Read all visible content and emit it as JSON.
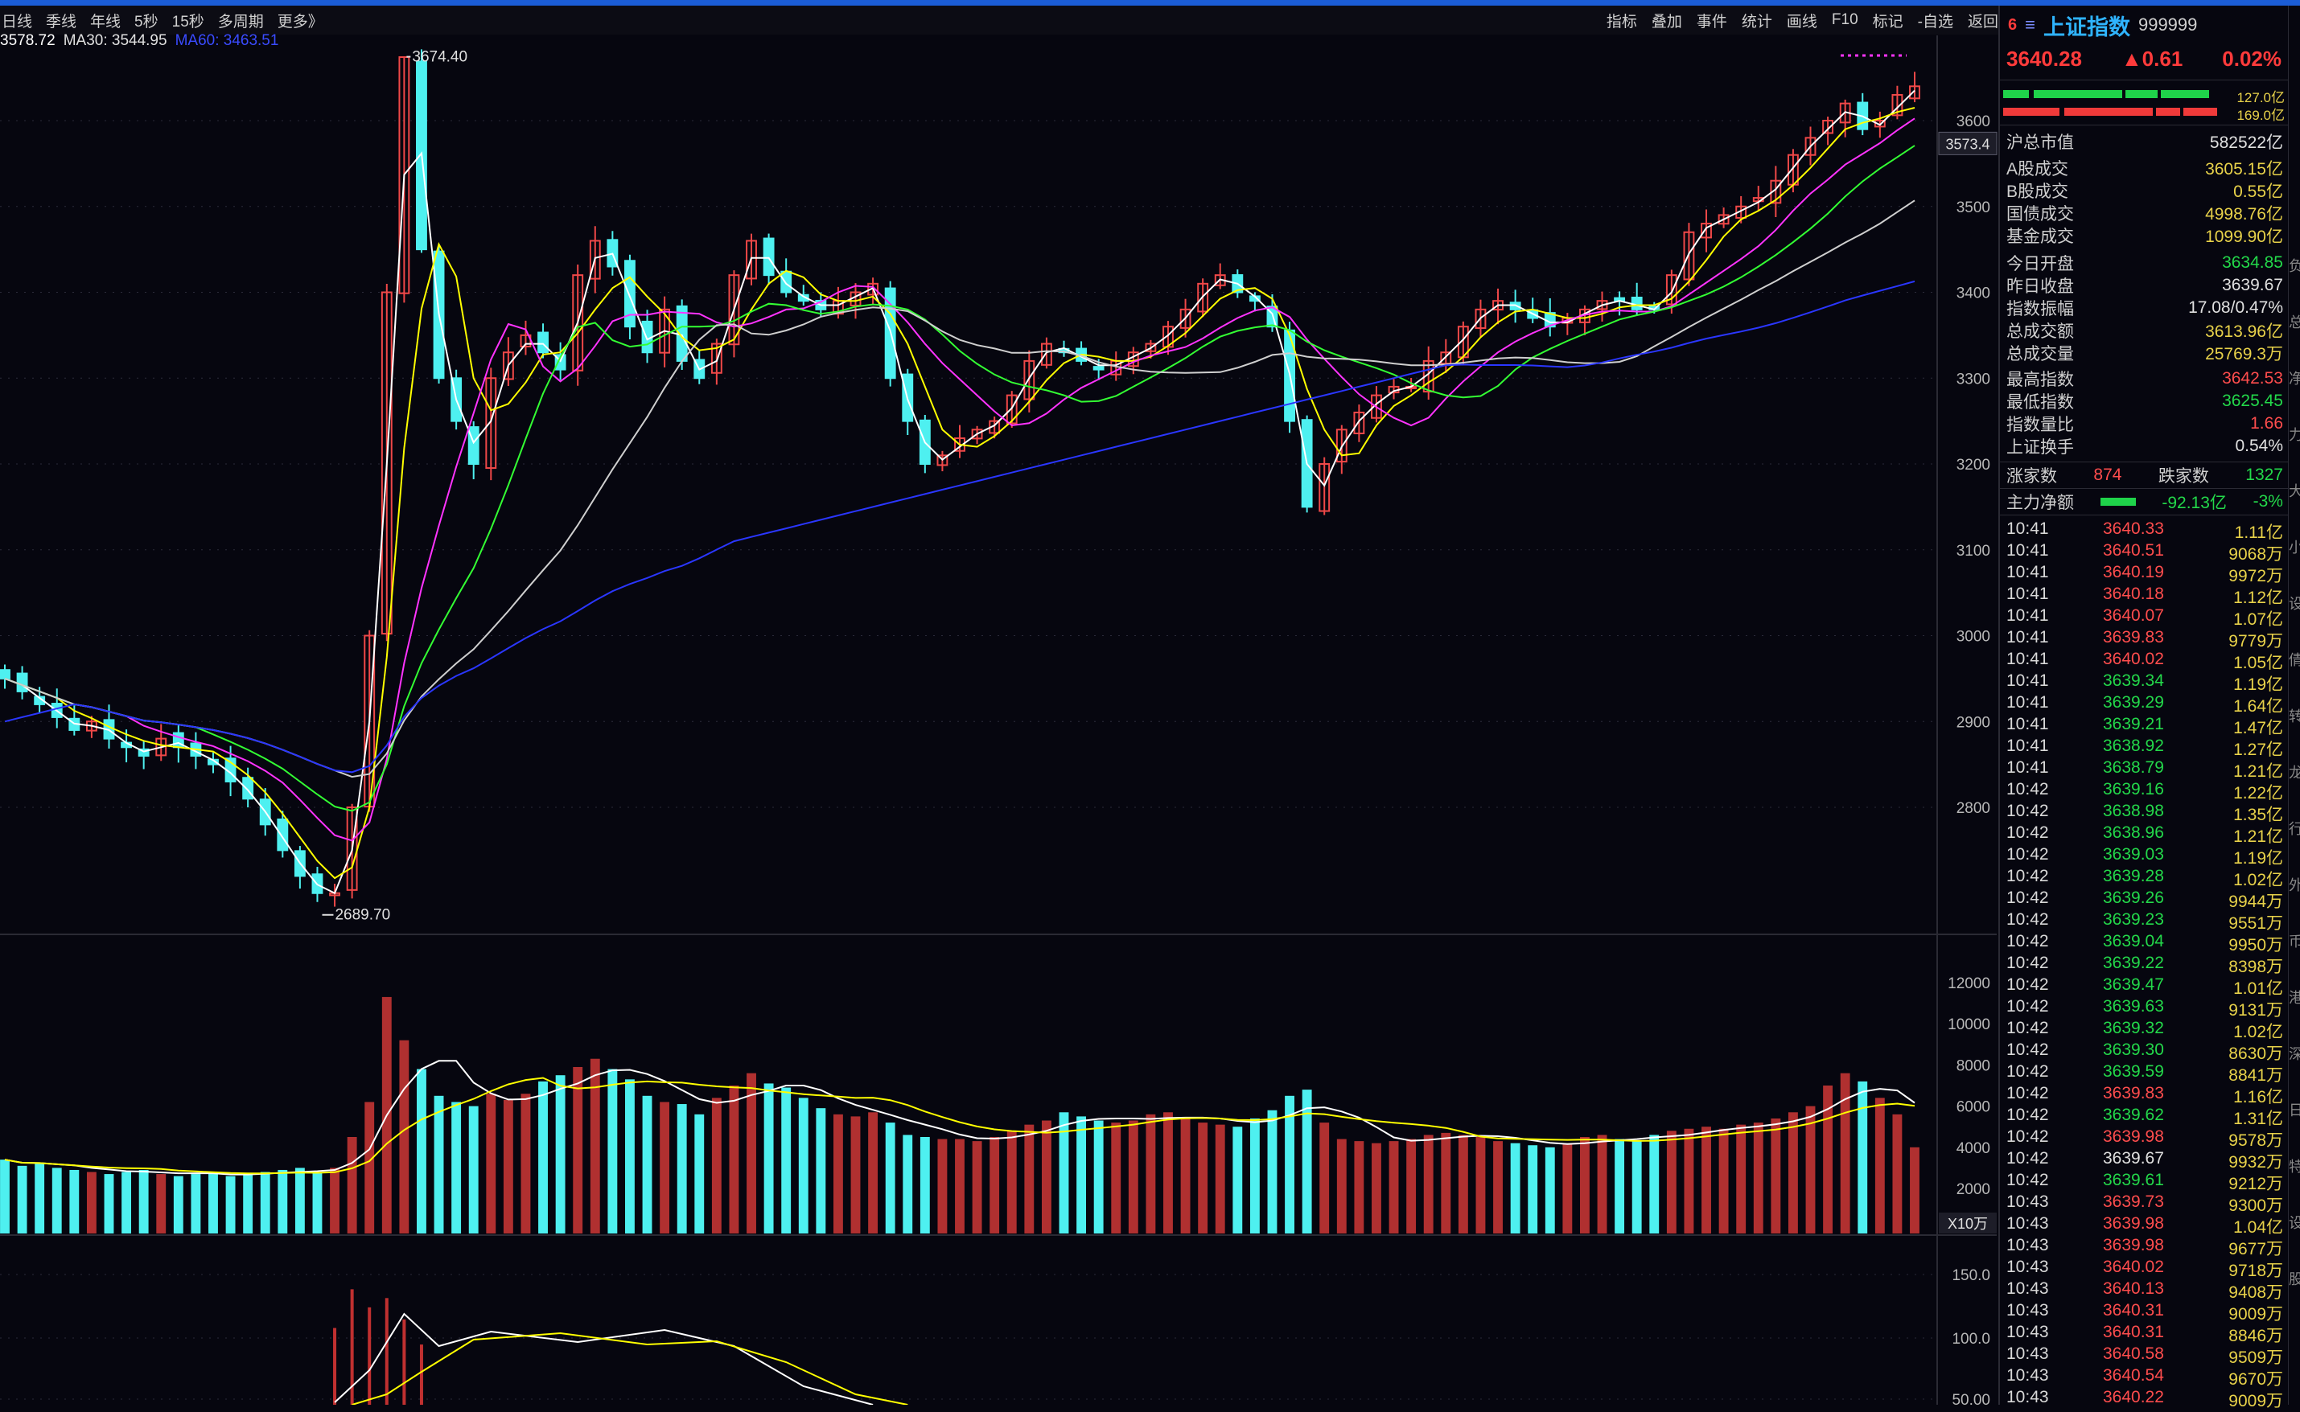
{
  "toolbar": {
    "periods": [
      "日线",
      "季线",
      "年线",
      "5秒",
      "15秒",
      "多周期",
      "更多》"
    ],
    "tools": [
      "指标",
      "叠加",
      "事件",
      "统计",
      "画线",
      "F10",
      "标记",
      "-自选",
      "返回"
    ]
  },
  "ma_legend": [
    {
      "text": "3578.72",
      "color": "#ffffff"
    },
    {
      "text": "MA30: 3544.95",
      "color": "#e0e0e0"
    },
    {
      "text": "MA60: 3463.51",
      "color": "#3a4bff"
    }
  ],
  "chart_data": {
    "type": "candlestick",
    "price_axis": {
      "ticks": [
        3600,
        3500,
        3400,
        3300,
        3200,
        3100,
        3000,
        2900,
        2800
      ],
      "current_label": "3573.4"
    },
    "annotations": {
      "high": "3674.40",
      "low": "2689.70"
    },
    "volume_axis": {
      "ticks": [
        12000,
        10000,
        8000,
        6000,
        4000,
        2000
      ],
      "unit": "X10万"
    },
    "lower_axis": {
      "ticks": [
        "150.0",
        "100.0",
        "50.00"
      ]
    },
    "closes": [
      2950,
      2935,
      2920,
      2905,
      2890,
      2900,
      2880,
      2870,
      2860,
      2880,
      2870,
      2860,
      2850,
      2830,
      2810,
      2780,
      2750,
      2720,
      2700,
      2700,
      2800,
      3000,
      3400,
      3674,
      3450,
      3300,
      3250,
      3200,
      3300,
      3330,
      3350,
      3330,
      3310,
      3420,
      3460,
      3430,
      3360,
      3330,
      3380,
      3320,
      3300,
      3340,
      3420,
      3460,
      3420,
      3400,
      3390,
      3380,
      3390,
      3400,
      3410,
      3300,
      3250,
      3200,
      3210,
      3230,
      3240,
      3250,
      3280,
      3320,
      3340,
      3330,
      3320,
      3310,
      3320,
      3330,
      3340,
      3360,
      3380,
      3410,
      3420,
      3400,
      3390,
      3360,
      3250,
      3150,
      3200,
      3240,
      3260,
      3280,
      3290,
      3290,
      3320,
      3330,
      3360,
      3380,
      3390,
      3380,
      3370,
      3360,
      3370,
      3380,
      3390,
      3390,
      3380,
      3380,
      3420,
      3470,
      3480,
      3490,
      3500,
      3510,
      3530,
      3560,
      3580,
      3600,
      3620,
      3590,
      3600,
      3630,
      3640
    ],
    "volumes": [
      3400,
      3100,
      3200,
      3000,
      2900,
      2800,
      2700,
      2800,
      2900,
      2700,
      2600,
      2700,
      2800,
      2600,
      2700,
      2800,
      2900,
      3000,
      2800,
      3000,
      4500,
      6200,
      11300,
      9200,
      7800,
      6500,
      6200,
      6000,
      6600,
      6300,
      6600,
      7200,
      7500,
      7900,
      8300,
      7800,
      7300,
      6500,
      6200,
      6100,
      5600,
      6400,
      7000,
      7600,
      7100,
      6900,
      6400,
      5900,
      5600,
      5500,
      5700,
      5200,
      4600,
      4500,
      4400,
      4400,
      4300,
      4500,
      4800,
      5100,
      5300,
      5700,
      5500,
      5300,
      5200,
      5300,
      5600,
      5700,
      5400,
      5200,
      5100,
      5000,
      5400,
      5800,
      6500,
      6800,
      5200,
      4400,
      4300,
      4200,
      4300,
      4400,
      4600,
      4700,
      4600,
      4500,
      4300,
      4200,
      4100,
      4000,
      4200,
      4500,
      4600,
      4400,
      4300,
      4600,
      4800,
      4900,
      5000,
      4900,
      5100,
      5200,
      5400,
      5700,
      6000,
      7000,
      7600,
      7200,
      6400,
      5600,
      4000
    ],
    "ma_series": [
      {
        "name": "MA5",
        "color": "#ffffff"
      },
      {
        "name": "MA10",
        "color": "#ffff00"
      },
      {
        "name": "MA20",
        "color": "#ff33ff"
      },
      {
        "name": "MA30",
        "color": "#33ff33"
      },
      {
        "name": "MA60",
        "color": "#cfcfcf"
      },
      {
        "name": "MA120",
        "color": "#2a36ff"
      }
    ],
    "colors": {
      "up": "#f04848",
      "down": "#4ef0f0"
    }
  },
  "panel": {
    "index_no": "6",
    "menu_glyph": "≡",
    "name": "上证指数",
    "code": "999999",
    "price": "3640.28",
    "change": "▲0.61",
    "change_pct": "0.02%",
    "buy_amount": "127.0亿",
    "sell_amount": "169.0亿",
    "stats": [
      {
        "k": "沪总市值",
        "v": "582522亿",
        "c": "wht"
      },
      {
        "k": "A股成交",
        "v": "3605.15亿",
        "c": "yel"
      },
      {
        "k": "B股成交",
        "v": "0.55亿",
        "c": "yel"
      },
      {
        "k": "国债成交",
        "v": "4998.76亿",
        "c": "yel"
      },
      {
        "k": "基金成交",
        "v": "1099.90亿",
        "c": "yel"
      },
      {
        "k": "今日开盘",
        "v": "3634.85",
        "c": "grn"
      },
      {
        "k": "昨日收盘",
        "v": "3639.67",
        "c": "wht"
      },
      {
        "k": "指数振幅",
        "v": "17.08/0.47%",
        "c": "wht"
      },
      {
        "k": "总成交额",
        "v": "3613.96亿",
        "c": "yel"
      },
      {
        "k": "总成交量",
        "v": "25769.3万",
        "c": "yel"
      },
      {
        "k": "最高指数",
        "v": "3642.53",
        "c": "red"
      },
      {
        "k": "最低指数",
        "v": "3625.45",
        "c": "grn"
      },
      {
        "k": "指数量比",
        "v": "1.66",
        "c": "red"
      },
      {
        "k": "上证换手",
        "v": "0.54%",
        "c": "wht"
      }
    ],
    "rise_label": "涨家数",
    "rise_count": "874",
    "fall_label": "跌家数",
    "fall_count": "1327",
    "net_flow_label": "主力净额",
    "net_flow_value": "-92.13亿",
    "net_flow_pct": "-3%",
    "ticks": [
      {
        "t": "10:41",
        "p": "3640.33",
        "c": "red",
        "v": "1.11亿"
      },
      {
        "t": "10:41",
        "p": "3640.51",
        "c": "red",
        "v": "9068万"
      },
      {
        "t": "10:41",
        "p": "3640.19",
        "c": "red",
        "v": "9972万"
      },
      {
        "t": "10:41",
        "p": "3640.18",
        "c": "red",
        "v": "1.12亿"
      },
      {
        "t": "10:41",
        "p": "3640.07",
        "c": "red",
        "v": "1.07亿"
      },
      {
        "t": "10:41",
        "p": "3639.83",
        "c": "red",
        "v": "9779万"
      },
      {
        "t": "10:41",
        "p": "3640.02",
        "c": "red",
        "v": "1.05亿"
      },
      {
        "t": "10:41",
        "p": "3639.34",
        "c": "grn",
        "v": "1.19亿"
      },
      {
        "t": "10:41",
        "p": "3639.29",
        "c": "grn",
        "v": "1.64亿"
      },
      {
        "t": "10:41",
        "p": "3639.21",
        "c": "grn",
        "v": "1.47亿"
      },
      {
        "t": "10:41",
        "p": "3638.92",
        "c": "grn",
        "v": "1.27亿"
      },
      {
        "t": "10:41",
        "p": "3638.79",
        "c": "grn",
        "v": "1.21亿"
      },
      {
        "t": "10:42",
        "p": "3639.16",
        "c": "grn",
        "v": "1.22亿"
      },
      {
        "t": "10:42",
        "p": "3638.98",
        "c": "grn",
        "v": "1.35亿"
      },
      {
        "t": "10:42",
        "p": "3638.96",
        "c": "grn",
        "v": "1.21亿"
      },
      {
        "t": "10:42",
        "p": "3639.03",
        "c": "grn",
        "v": "1.19亿"
      },
      {
        "t": "10:42",
        "p": "3639.28",
        "c": "grn",
        "v": "1.02亿"
      },
      {
        "t": "10:42",
        "p": "3639.26",
        "c": "grn",
        "v": "9944万"
      },
      {
        "t": "10:42",
        "p": "3639.23",
        "c": "grn",
        "v": "9551万"
      },
      {
        "t": "10:42",
        "p": "3639.04",
        "c": "grn",
        "v": "9950万"
      },
      {
        "t": "10:42",
        "p": "3639.22",
        "c": "grn",
        "v": "8398万"
      },
      {
        "t": "10:42",
        "p": "3639.47",
        "c": "grn",
        "v": "1.01亿"
      },
      {
        "t": "10:42",
        "p": "3639.63",
        "c": "grn",
        "v": "9131万"
      },
      {
        "t": "10:42",
        "p": "3639.32",
        "c": "grn",
        "v": "1.02亿"
      },
      {
        "t": "10:42",
        "p": "3639.30",
        "c": "grn",
        "v": "8630万"
      },
      {
        "t": "10:42",
        "p": "3639.59",
        "c": "grn",
        "v": "8841万"
      },
      {
        "t": "10:42",
        "p": "3639.83",
        "c": "red",
        "v": "1.16亿"
      },
      {
        "t": "10:42",
        "p": "3639.62",
        "c": "grn",
        "v": "1.31亿"
      },
      {
        "t": "10:42",
        "p": "3639.98",
        "c": "red",
        "v": "9578万"
      },
      {
        "t": "10:42",
        "p": "3639.67",
        "c": "wht",
        "v": "9932万"
      },
      {
        "t": "10:42",
        "p": "3639.61",
        "c": "grn",
        "v": "9212万"
      },
      {
        "t": "10:43",
        "p": "3639.73",
        "c": "red",
        "v": "9300万"
      },
      {
        "t": "10:43",
        "p": "3639.98",
        "c": "red",
        "v": "1.04亿"
      },
      {
        "t": "10:43",
        "p": "3639.98",
        "c": "red",
        "v": "9677万"
      },
      {
        "t": "10:43",
        "p": "3640.02",
        "c": "red",
        "v": "9718万"
      },
      {
        "t": "10:43",
        "p": "3640.13",
        "c": "red",
        "v": "9408万"
      },
      {
        "t": "10:43",
        "p": "3640.31",
        "c": "red",
        "v": "9009万"
      },
      {
        "t": "10:43",
        "p": "3640.31",
        "c": "red",
        "v": "8846万"
      },
      {
        "t": "10:43",
        "p": "3640.58",
        "c": "red",
        "v": "9509万"
      },
      {
        "t": "10:43",
        "p": "3640.54",
        "c": "red",
        "v": "9670万"
      },
      {
        "t": "10:43",
        "p": "3640.22",
        "c": "red",
        "v": "9009万"
      }
    ],
    "edge_chars": [
      "负",
      "总",
      "净",
      "力",
      "大",
      "小",
      "设",
      "倩",
      "转",
      "龙",
      "行",
      "外",
      "币",
      "港",
      "深",
      "日",
      "特",
      "设",
      "股"
    ]
  }
}
